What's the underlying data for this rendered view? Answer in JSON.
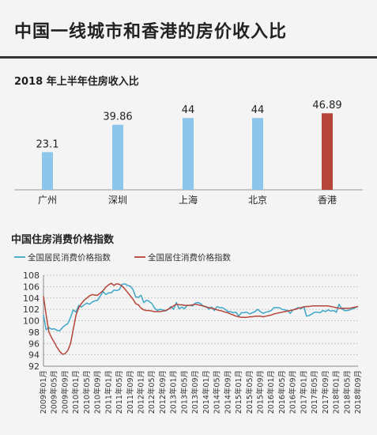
{
  "page": {
    "title": "中国一线城市和香港的房价收入比",
    "accent_color": "#333333",
    "background": "#f4f4f4"
  },
  "chart_data": [
    {
      "type": "bar",
      "title": "2018 年上半年住房收入比",
      "categories": [
        "广州",
        "深圳",
        "上海",
        "北京",
        "香港"
      ],
      "values": [
        23.1,
        39.86,
        44,
        44,
        46.89
      ],
      "value_labels": [
        "23.1",
        "39.86",
        "44",
        "44",
        "46.89"
      ],
      "colors": [
        "#8ec5ea",
        "#8ec5ea",
        "#8ec5ea",
        "#8ec5ea",
        "#b5453a"
      ],
      "ylim": [
        0,
        47
      ],
      "grid": false,
      "legend": "none"
    },
    {
      "type": "line",
      "title": "中国住房消费价格指数",
      "legend_position": "top-left",
      "ylim": [
        92,
        108
      ],
      "yticks": [
        92,
        94,
        96,
        98,
        100,
        102,
        104,
        106,
        108
      ],
      "grid": true,
      "x_tick_labels": [
        "2009年01月",
        "2009年05月",
        "2009年09月",
        "2010年01月",
        "2010年05月",
        "2010年09月",
        "2011年01月",
        "2011年05月",
        "2011年09月",
        "2012年01月",
        "2012年05月",
        "2012年09月",
        "2013年01月",
        "2013年05月",
        "2013年09月",
        "2014年01月",
        "2014年05月",
        "2014年09月",
        "2015年01月",
        "2015年05月",
        "2015年09月",
        "2016年01月",
        "2016年05月",
        "2016年09月",
        "2017年01月",
        "2017年05月",
        "2017年09月",
        "2018年01月",
        "2018年05月",
        "2018年09月"
      ],
      "series": [
        {
          "name": "全国居民消费价格指数",
          "color": "#3fa7c8",
          "points": [
            [
              "2009-01",
              101.0
            ],
            [
              "2009-02",
              98.4
            ],
            [
              "2009-03",
              98.8
            ],
            [
              "2009-04",
              98.5
            ],
            [
              "2009-05",
              98.6
            ],
            [
              "2009-06",
              98.3
            ],
            [
              "2009-07",
              98.2
            ],
            [
              "2009-08",
              98.8
            ],
            [
              "2009-09",
              99.2
            ],
            [
              "2009-10",
              99.5
            ],
            [
              "2009-11",
              100.6
            ],
            [
              "2009-12",
              101.9
            ],
            [
              "2010-01",
              101.5
            ],
            [
              "2010-02",
              102.7
            ],
            [
              "2010-03",
              102.4
            ],
            [
              "2010-04",
              102.8
            ],
            [
              "2010-05",
              103.1
            ],
            [
              "2010-06",
              102.9
            ],
            [
              "2010-07",
              103.3
            ],
            [
              "2010-08",
              103.5
            ],
            [
              "2010-09",
              103.6
            ],
            [
              "2010-10",
              104.4
            ],
            [
              "2010-11",
              105.1
            ],
            [
              "2010-12",
              104.6
            ],
            [
              "2011-01",
              104.9
            ],
            [
              "2011-02",
              104.9
            ],
            [
              "2011-03",
              105.4
            ],
            [
              "2011-04",
              105.3
            ],
            [
              "2011-05",
              105.5
            ],
            [
              "2011-06",
              106.4
            ],
            [
              "2011-07",
              106.5
            ],
            [
              "2011-08",
              106.2
            ],
            [
              "2011-09",
              106.1
            ],
            [
              "2011-10",
              105.5
            ],
            [
              "2011-11",
              104.2
            ],
            [
              "2011-12",
              104.1
            ],
            [
              "2012-01",
              104.5
            ],
            [
              "2012-02",
              103.2
            ],
            [
              "2012-03",
              103.6
            ],
            [
              "2012-04",
              103.4
            ],
            [
              "2012-05",
              103.0
            ],
            [
              "2012-06",
              102.2
            ],
            [
              "2012-07",
              101.8
            ],
            [
              "2012-08",
              102.0
            ],
            [
              "2012-09",
              101.9
            ],
            [
              "2012-10",
              101.7
            ],
            [
              "2012-11",
              102.0
            ],
            [
              "2012-12",
              102.5
            ],
            [
              "2013-01",
              102.0
            ],
            [
              "2013-02",
              103.2
            ],
            [
              "2013-03",
              102.1
            ],
            [
              "2013-04",
              102.4
            ],
            [
              "2013-05",
              102.1
            ],
            [
              "2013-06",
              102.7
            ],
            [
              "2013-07",
              102.7
            ],
            [
              "2013-08",
              102.6
            ],
            [
              "2013-09",
              103.1
            ],
            [
              "2013-10",
              103.2
            ],
            [
              "2013-11",
              103.0
            ],
            [
              "2013-12",
              102.5
            ],
            [
              "2014-01",
              102.5
            ],
            [
              "2014-02",
              102.0
            ],
            [
              "2014-03",
              102.4
            ],
            [
              "2014-04",
              101.8
            ],
            [
              "2014-05",
              102.5
            ],
            [
              "2014-06",
              102.3
            ],
            [
              "2014-07",
              102.3
            ],
            [
              "2014-08",
              102.0
            ],
            [
              "2014-09",
              101.6
            ],
            [
              "2014-10",
              101.6
            ],
            [
              "2014-11",
              101.4
            ],
            [
              "2014-12",
              101.5
            ],
            [
              "2015-01",
              100.8
            ],
            [
              "2015-02",
              101.4
            ],
            [
              "2015-03",
              101.4
            ],
            [
              "2015-04",
              101.5
            ],
            [
              "2015-05",
              101.2
            ],
            [
              "2015-06",
              101.4
            ],
            [
              "2015-07",
              101.6
            ],
            [
              "2015-08",
              102.0
            ],
            [
              "2015-09",
              101.6
            ],
            [
              "2015-10",
              101.3
            ],
            [
              "2015-11",
              101.5
            ],
            [
              "2015-12",
              101.6
            ],
            [
              "2016-01",
              101.8
            ],
            [
              "2016-02",
              102.3
            ],
            [
              "2016-03",
              102.3
            ],
            [
              "2016-04",
              102.3
            ],
            [
              "2016-05",
              102.0
            ],
            [
              "2016-06",
              101.9
            ],
            [
              "2016-07",
              101.8
            ],
            [
              "2016-08",
              101.3
            ],
            [
              "2016-09",
              101.9
            ],
            [
              "2016-10",
              102.1
            ],
            [
              "2016-11",
              102.3
            ],
            [
              "2016-12",
              102.1
            ],
            [
              "2017-01",
              102.5
            ],
            [
              "2017-02",
              100.8
            ],
            [
              "2017-03",
              100.9
            ],
            [
              "2017-04",
              101.2
            ],
            [
              "2017-05",
              101.5
            ],
            [
              "2017-06",
              101.5
            ],
            [
              "2017-07",
              101.4
            ],
            [
              "2017-08",
              101.8
            ],
            [
              "2017-09",
              101.6
            ],
            [
              "2017-10",
              101.9
            ],
            [
              "2017-11",
              101.7
            ],
            [
              "2017-12",
              101.8
            ],
            [
              "2018-01",
              101.5
            ],
            [
              "2018-02",
              102.9
            ],
            [
              "2018-03",
              102.1
            ],
            [
              "2018-04",
              101.8
            ],
            [
              "2018-05",
              101.8
            ],
            [
              "2018-06",
              101.9
            ],
            [
              "2018-07",
              102.1
            ],
            [
              "2018-08",
              102.3
            ],
            [
              "2018-09",
              102.5
            ]
          ]
        },
        {
          "name": "全国居住消费价格指数",
          "color": "#b5453a",
          "points": [
            [
              "2009-01",
              104.3
            ],
            [
              "2009-02",
              101.0
            ],
            [
              "2009-03",
              98.0
            ],
            [
              "2009-04",
              97.0
            ],
            [
              "2009-05",
              96.2
            ],
            [
              "2009-06",
              95.3
            ],
            [
              "2009-07",
              94.6
            ],
            [
              "2009-08",
              94.1
            ],
            [
              "2009-09",
              94.2
            ],
            [
              "2009-10",
              94.8
            ],
            [
              "2009-11",
              96.0
            ],
            [
              "2009-12",
              98.5
            ],
            [
              "2010-01",
              101.0
            ],
            [
              "2010-02",
              102.3
            ],
            [
              "2010-03",
              103.0
            ],
            [
              "2010-04",
              103.6
            ],
            [
              "2010-05",
              104.0
            ],
            [
              "2010-06",
              104.4
            ],
            [
              "2010-07",
              104.6
            ],
            [
              "2010-08",
              104.5
            ],
            [
              "2010-09",
              104.5
            ],
            [
              "2010-10",
              104.9
            ],
            [
              "2010-11",
              105.3
            ],
            [
              "2010-12",
              105.9
            ],
            [
              "2011-01",
              106.3
            ],
            [
              "2011-02",
              106.6
            ],
            [
              "2011-03",
              106.2
            ],
            [
              "2011-04",
              106.5
            ],
            [
              "2011-05",
              106.4
            ],
            [
              "2011-06",
              106.1
            ],
            [
              "2011-07",
              105.6
            ],
            [
              "2011-08",
              105.0
            ],
            [
              "2011-09",
              104.4
            ],
            [
              "2011-10",
              103.8
            ],
            [
              "2011-11",
              103.0
            ],
            [
              "2011-12",
              102.8
            ],
            [
              "2012-01",
              102.2
            ],
            [
              "2012-02",
              101.9
            ],
            [
              "2012-03",
              101.8
            ],
            [
              "2012-04",
              101.8
            ],
            [
              "2012-05",
              101.7
            ],
            [
              "2012-06",
              101.6
            ],
            [
              "2012-07",
              101.6
            ],
            [
              "2012-08",
              101.6
            ],
            [
              "2012-09",
              101.7
            ],
            [
              "2012-10",
              101.8
            ],
            [
              "2012-11",
              102.0
            ],
            [
              "2012-12",
              102.3
            ],
            [
              "2013-01",
              102.6
            ],
            [
              "2013-02",
              102.9
            ],
            [
              "2013-03",
              102.8
            ],
            [
              "2013-04",
              102.8
            ],
            [
              "2013-05",
              102.7
            ],
            [
              "2013-06",
              102.7
            ],
            [
              "2013-07",
              102.7
            ],
            [
              "2013-08",
              102.8
            ],
            [
              "2013-09",
              102.9
            ],
            [
              "2013-10",
              102.8
            ],
            [
              "2013-11",
              102.7
            ],
            [
              "2013-12",
              102.6
            ],
            [
              "2014-01",
              102.4
            ],
            [
              "2014-02",
              102.3
            ],
            [
              "2014-03",
              102.2
            ],
            [
              "2014-04",
              102.1
            ],
            [
              "2014-05",
              101.9
            ],
            [
              "2014-06",
              101.8
            ],
            [
              "2014-07",
              101.7
            ],
            [
              "2014-08",
              101.5
            ],
            [
              "2014-09",
              101.4
            ],
            [
              "2014-10",
              101.2
            ],
            [
              "2014-11",
              101.0
            ],
            [
              "2014-12",
              100.8
            ],
            [
              "2015-01",
              100.7
            ],
            [
              "2015-02",
              100.6
            ],
            [
              "2015-03",
              100.6
            ],
            [
              "2015-04",
              100.6
            ],
            [
              "2015-05",
              100.7
            ],
            [
              "2015-06",
              100.7
            ],
            [
              "2015-07",
              100.8
            ],
            [
              "2015-08",
              100.8
            ],
            [
              "2015-09",
              100.8
            ],
            [
              "2015-10",
              100.7
            ],
            [
              "2015-11",
              100.8
            ],
            [
              "2015-12",
              100.9
            ],
            [
              "2016-01",
              101.0
            ],
            [
              "2016-02",
              101.2
            ],
            [
              "2016-03",
              101.3
            ],
            [
              "2016-04",
              101.4
            ],
            [
              "2016-05",
              101.5
            ],
            [
              "2016-06",
              101.6
            ],
            [
              "2016-07",
              101.7
            ],
            [
              "2016-08",
              101.8
            ],
            [
              "2016-09",
              101.9
            ],
            [
              "2016-10",
              102.0
            ],
            [
              "2016-11",
              102.2
            ],
            [
              "2016-12",
              102.3
            ],
            [
              "2017-01",
              102.4
            ],
            [
              "2017-02",
              102.5
            ],
            [
              "2017-03",
              102.5
            ],
            [
              "2017-04",
              102.6
            ],
            [
              "2017-05",
              102.6
            ],
            [
              "2017-06",
              102.6
            ],
            [
              "2017-07",
              102.6
            ],
            [
              "2017-08",
              102.6
            ],
            [
              "2017-09",
              102.6
            ],
            [
              "2017-10",
              102.6
            ],
            [
              "2017-11",
              102.5
            ],
            [
              "2017-12",
              102.4
            ],
            [
              "2018-01",
              102.3
            ],
            [
              "2018-02",
              102.2
            ],
            [
              "2018-03",
              102.2
            ],
            [
              "2018-04",
              102.2
            ],
            [
              "2018-05",
              102.2
            ],
            [
              "2018-06",
              102.2
            ],
            [
              "2018-07",
              102.3
            ],
            [
              "2018-08",
              102.4
            ],
            [
              "2018-09",
              102.5
            ]
          ]
        }
      ]
    }
  ]
}
